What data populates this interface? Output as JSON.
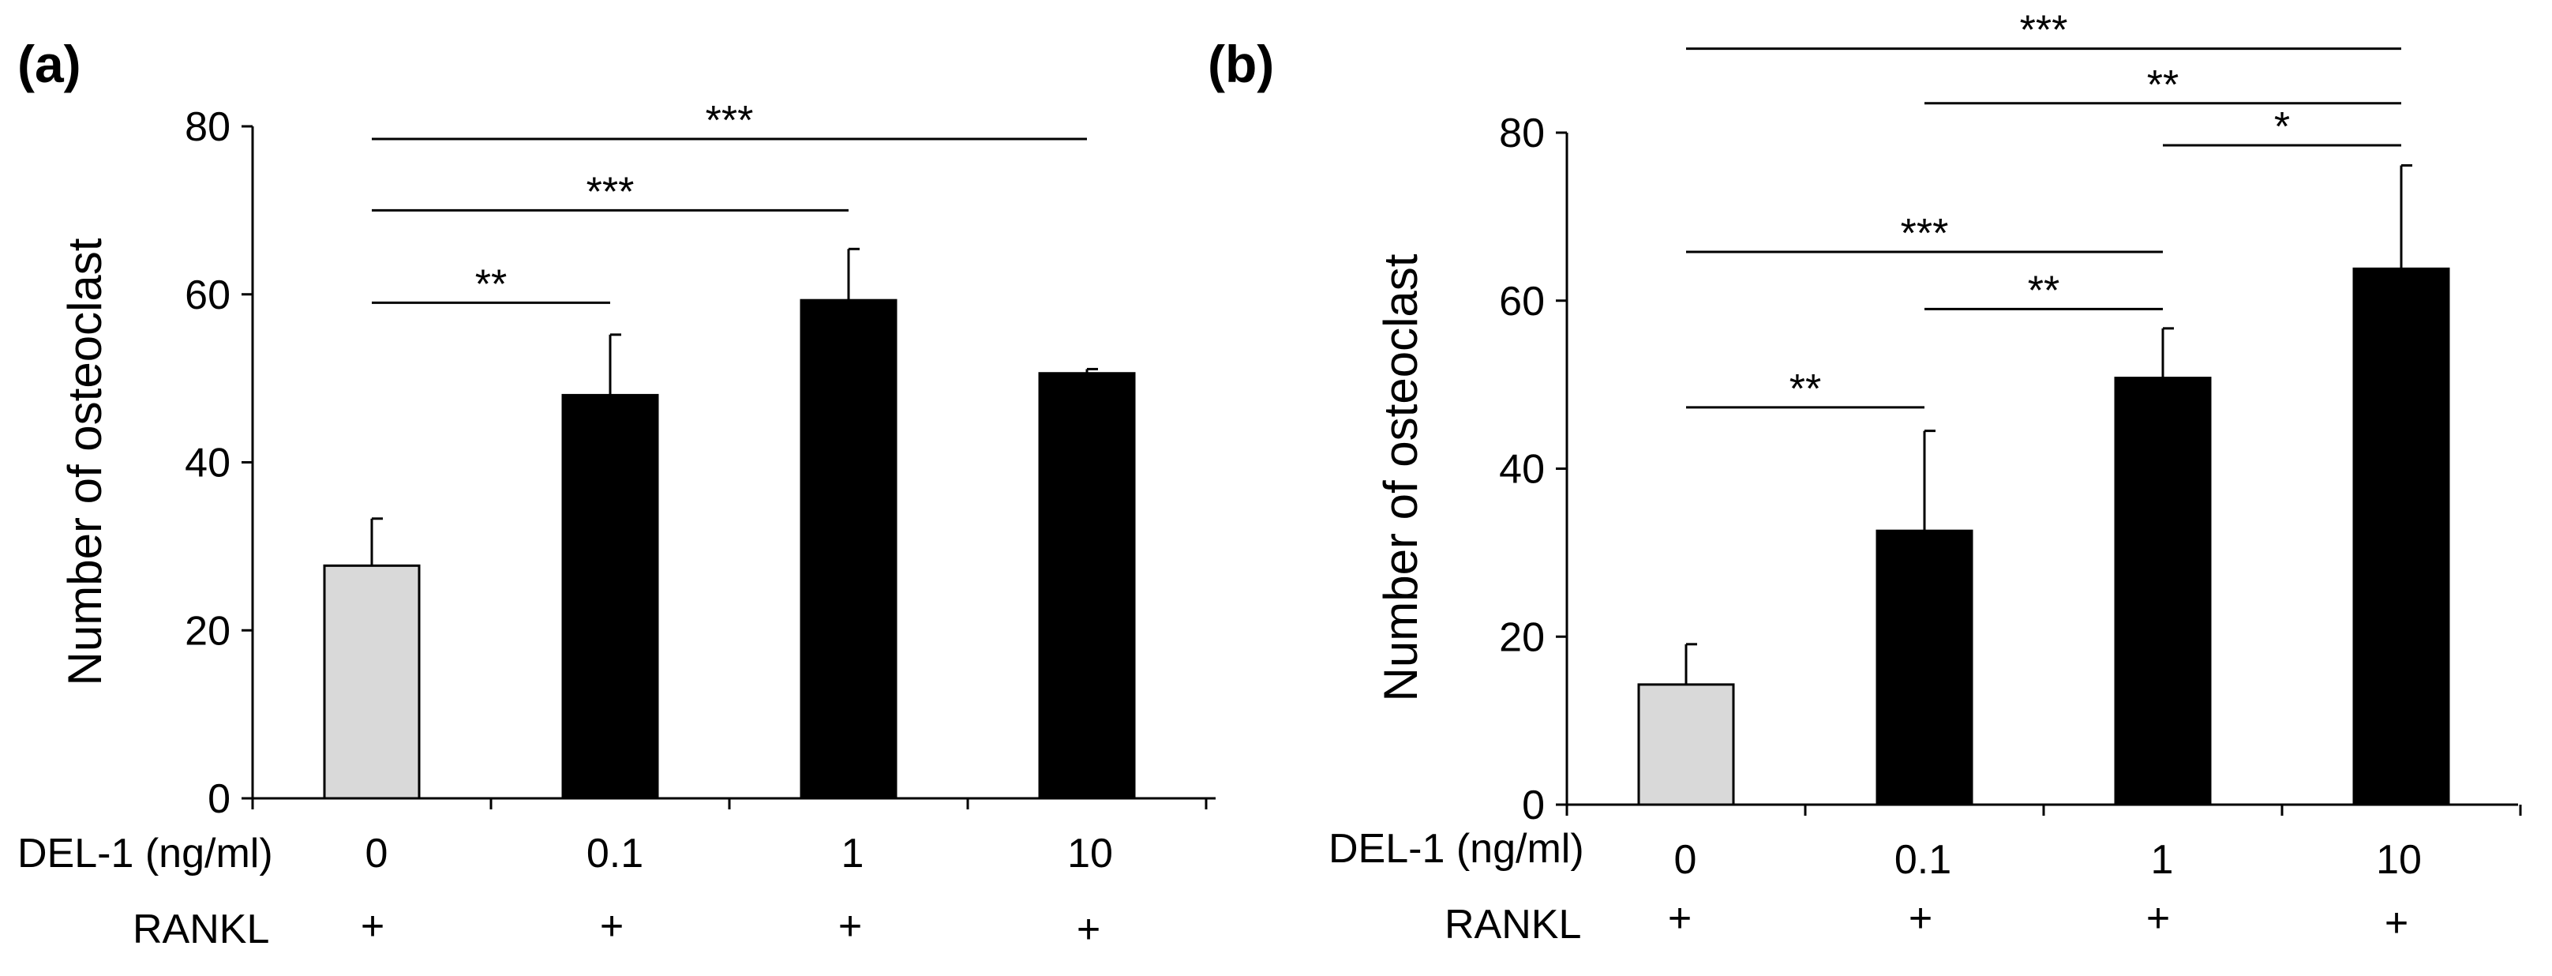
{
  "chart_data": [
    {
      "panel": "(a)",
      "type": "bar",
      "ylabel": "Number of osteoclast",
      "ylim": [
        0,
        80
      ],
      "yticks": [
        0,
        20,
        40,
        60,
        80
      ],
      "row_labels": [
        "DEL-1 (ng/ml)",
        "RANKL"
      ],
      "categories": [
        "0",
        "0.1",
        "1",
        "10"
      ],
      "rankl": [
        "+",
        "+",
        "+",
        "+"
      ],
      "values": [
        27.7,
        48.0,
        59.3,
        50.6
      ],
      "errors": [
        5.6,
        7.2,
        6.1,
        0.5
      ],
      "colors": [
        "#d9d9d9",
        "#000000",
        "#000000",
        "#000000"
      ],
      "significance": [
        {
          "from": 0,
          "to": 3,
          "y": 78.5,
          "label": "***"
        },
        {
          "from": 0,
          "to": 2,
          "y": 70.0,
          "label": "***"
        },
        {
          "from": 0,
          "to": 1,
          "y": 59.0,
          "label": "**"
        }
      ]
    },
    {
      "panel": "(b)",
      "type": "bar",
      "ylabel": "Number of osteoclast",
      "ylim": [
        0,
        80
      ],
      "yticks": [
        0,
        20,
        40,
        60,
        80
      ],
      "row_labels": [
        "DEL-1 (ng/ml)",
        "RANKL"
      ],
      "categories": [
        "0",
        "0.1",
        "1",
        "10"
      ],
      "rankl": [
        "+",
        "+",
        "+",
        "+"
      ],
      "values": [
        14.3,
        32.6,
        50.8,
        63.8
      ],
      "errors": [
        4.8,
        11.9,
        5.9,
        12.3
      ],
      "colors": [
        "#d9d9d9",
        "#000000",
        "#000000",
        "#000000"
      ],
      "significance": [
        {
          "from": 0,
          "to": 3,
          "y": 90.0,
          "label": "***"
        },
        {
          "from": 1,
          "to": 3,
          "y": 83.5,
          "label": "**"
        },
        {
          "from": 2,
          "to": 3,
          "y": 78.5,
          "label": "*"
        },
        {
          "from": 0,
          "to": 2,
          "y": 65.8,
          "label": "***"
        },
        {
          "from": 1,
          "to": 2,
          "y": 59.0,
          "label": "**"
        },
        {
          "from": 0,
          "to": 1,
          "y": 47.3,
          "label": "**"
        }
      ]
    }
  ]
}
